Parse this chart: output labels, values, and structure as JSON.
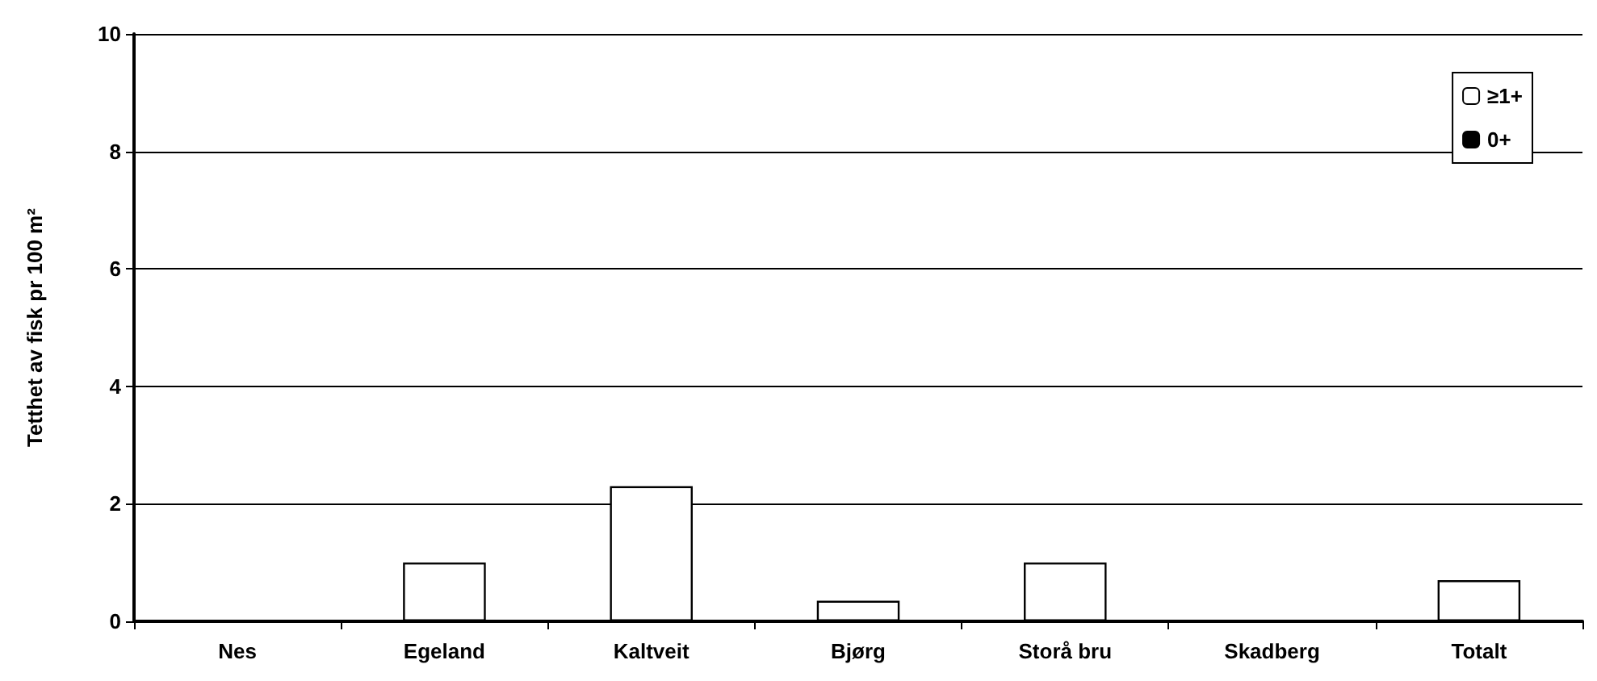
{
  "chart_data": {
    "type": "bar",
    "ylabel": "Tetthet av fisk pr 100 m²",
    "categories": [
      "Nes",
      "Egeland",
      "Kaltveit",
      "Bjørg",
      "Storå bru",
      "Skadberg",
      "Totalt"
    ],
    "stacked": true,
    "series": [
      {
        "name": "0+",
        "color": "#000000",
        "values": [
          0,
          0,
          0,
          0,
          0,
          0,
          0
        ]
      },
      {
        "name": "≥1+",
        "color": "#ffffff",
        "values": [
          0,
          1.0,
          2.3,
          0.35,
          1.0,
          0,
          0.7
        ]
      }
    ],
    "ylim": [
      0,
      10
    ],
    "yticks": [
      0,
      2,
      4,
      6,
      8,
      10
    ],
    "grid": "y",
    "legend": "top right"
  }
}
